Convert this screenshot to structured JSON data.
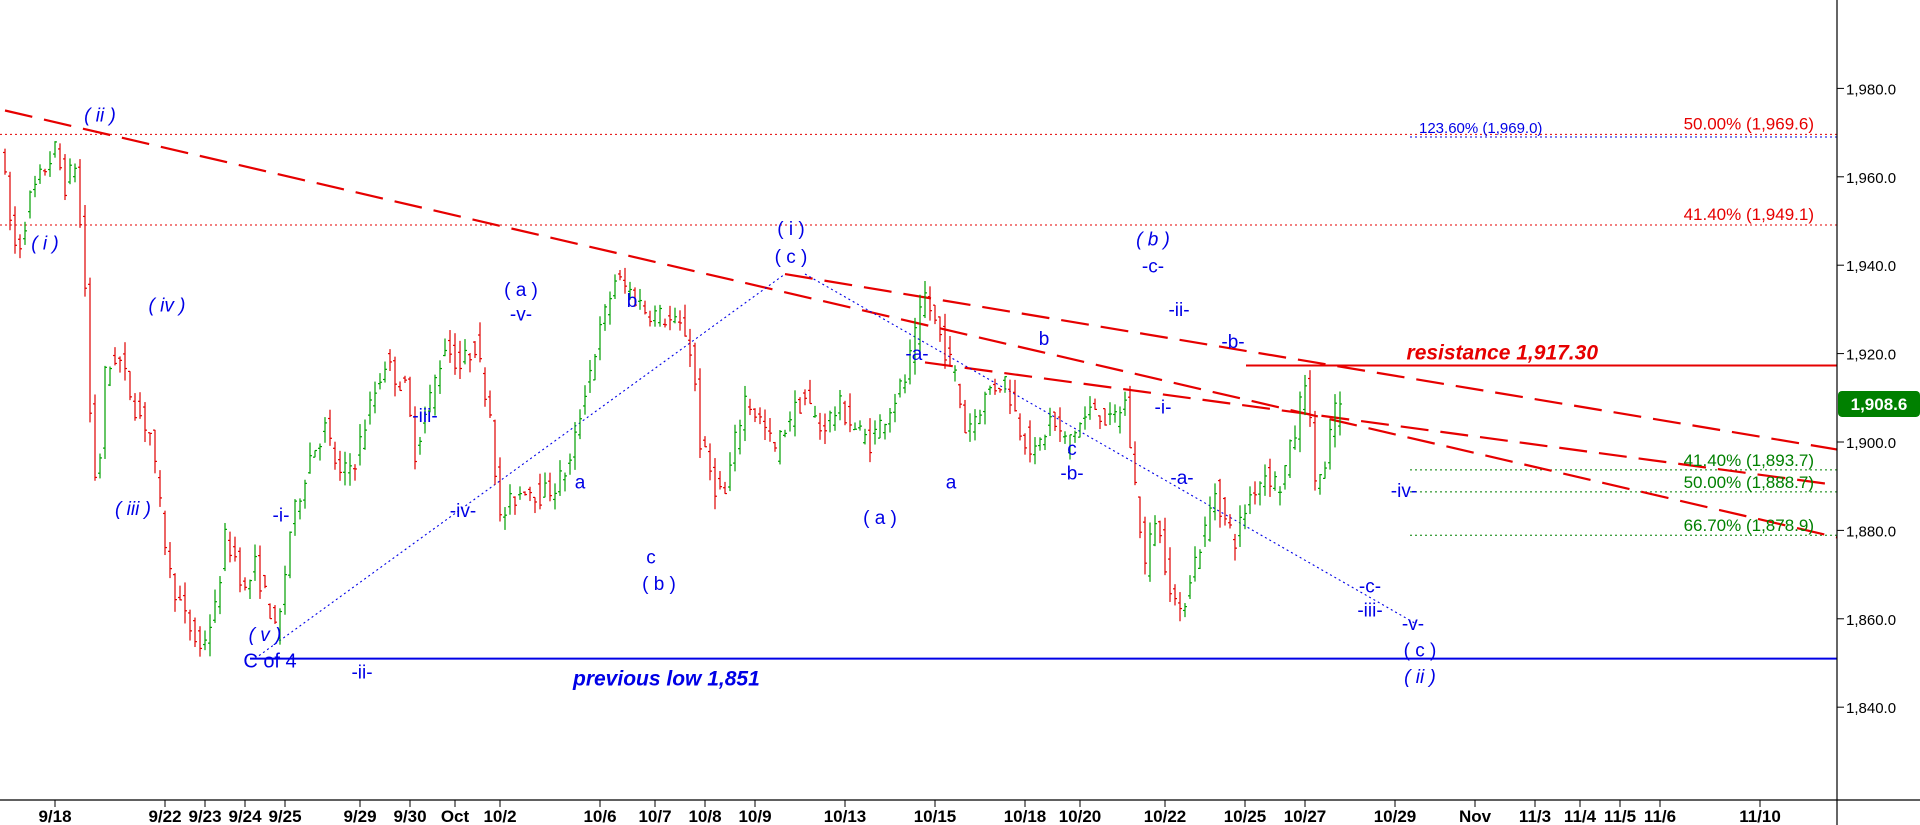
{
  "chart_data": {
    "type": "candlestick",
    "title": "",
    "xlabel": "",
    "ylabel": "",
    "ylim": [
      1819,
      2000
    ],
    "y_ticks": [
      1840,
      1860,
      1880,
      1900,
      1920,
      1940,
      1960,
      1980
    ],
    "y_tick_labels": [
      "1,840.0",
      "1,860.0",
      "1,880.0",
      "1,900.0",
      "1,920.0",
      "1,940.0",
      "1,960.0",
      "1,980.0"
    ],
    "x_ticks": [
      "9/18",
      "9/22",
      "9/23",
      "9/24",
      "9/25",
      "9/29",
      "9/30",
      "Oct",
      "10/2",
      "10/6",
      "10/7",
      "10/8",
      "10/9",
      "10/13",
      "10/15",
      "10/18",
      "10/20",
      "10/22",
      "10/25",
      "10/27",
      "10/29",
      "Nov",
      "11/3",
      "11/4",
      "11/5",
      "11/6",
      "11/10"
    ],
    "grid": false,
    "legend": "none",
    "colors": {
      "up": "#00a000",
      "down": "#e00000",
      "wave_label": "#0000e6",
      "fib_red": "#e60000",
      "fib_green": "#008000",
      "last_bg": "#008000"
    },
    "last_price": {
      "value": 1908.6,
      "label": "1,908.6"
    },
    "price_path": [
      {
        "x": 0.0,
        "p": 1968
      },
      {
        "x": 1.0,
        "p": 1950
      },
      {
        "x": 1.7,
        "p": 1942
      },
      {
        "x": 3.0,
        "p": 1955
      },
      {
        "x": 4.5,
        "p": 1962
      },
      {
        "x": 5.5,
        "p": 1966
      },
      {
        "x": 6.5,
        "p": 1958
      },
      {
        "x": 7.5,
        "p": 1963
      },
      {
        "x": 8.5,
        "p": 1935
      },
      {
        "x": 9.2,
        "p": 1895
      },
      {
        "x": 9.8,
        "p": 1890
      },
      {
        "x": 10.5,
        "p": 1915
      },
      {
        "x": 11.7,
        "p": 1920
      },
      {
        "x": 13.5,
        "p": 1908
      },
      {
        "x": 15.0,
        "p": 1902
      },
      {
        "x": 16.0,
        "p": 1885
      },
      {
        "x": 17.0,
        "p": 1870
      },
      {
        "x": 18.5,
        "p": 1860
      },
      {
        "x": 20.0,
        "p": 1853
      },
      {
        "x": 21.5,
        "p": 1862
      },
      {
        "x": 22.5,
        "p": 1878
      },
      {
        "x": 23.5,
        "p": 1874
      },
      {
        "x": 24.5,
        "p": 1866
      },
      {
        "x": 25.5,
        "p": 1872
      },
      {
        "x": 27.0,
        "p": 1862
      },
      {
        "x": 27.7,
        "p": 1855
      },
      {
        "x": 29.0,
        "p": 1880
      },
      {
        "x": 31.0,
        "p": 1897
      },
      {
        "x": 32.5,
        "p": 1903
      },
      {
        "x": 34.0,
        "p": 1892
      },
      {
        "x": 35.5,
        "p": 1896
      },
      {
        "x": 37.0,
        "p": 1908
      },
      {
        "x": 38.5,
        "p": 1918
      },
      {
        "x": 40.5,
        "p": 1912
      },
      {
        "x": 41.5,
        "p": 1898
      },
      {
        "x": 43.0,
        "p": 1910
      },
      {
        "x": 44.5,
        "p": 1922
      },
      {
        "x": 46.0,
        "p": 1917
      },
      {
        "x": 47.5,
        "p": 1922
      },
      {
        "x": 49.0,
        "p": 1907
      },
      {
        "x": 50.0,
        "p": 1882
      },
      {
        "x": 51.0,
        "p": 1886
      },
      {
        "x": 52.5,
        "p": 1890
      },
      {
        "x": 54.0,
        "p": 1888
      },
      {
        "x": 55.5,
        "p": 1890
      },
      {
        "x": 57.0,
        "p": 1895
      },
      {
        "x": 58.5,
        "p": 1912
      },
      {
        "x": 60.0,
        "p": 1925
      },
      {
        "x": 61.5,
        "p": 1937
      },
      {
        "x": 63.0,
        "p": 1934
      },
      {
        "x": 64.5,
        "p": 1930
      },
      {
        "x": 66.5,
        "p": 1928
      },
      {
        "x": 68.5,
        "p": 1925
      },
      {
        "x": 69.3,
        "p": 1918
      },
      {
        "x": 70.0,
        "p": 1900
      },
      {
        "x": 71.5,
        "p": 1890
      },
      {
        "x": 72.5,
        "p": 1888
      },
      {
        "x": 73.5,
        "p": 1900
      },
      {
        "x": 74.5,
        "p": 1910
      },
      {
        "x": 76.0,
        "p": 1905
      },
      {
        "x": 77.5,
        "p": 1898
      },
      {
        "x": 79.0,
        "p": 1906
      },
      {
        "x": 80.5,
        "p": 1910
      },
      {
        "x": 82.0,
        "p": 1903
      },
      {
        "x": 84.0,
        "p": 1908
      },
      {
        "x": 85.5,
        "p": 1903
      },
      {
        "x": 87.0,
        "p": 1900
      },
      {
        "x": 88.5,
        "p": 1906
      },
      {
        "x": 90.5,
        "p": 1914
      },
      {
        "x": 92.5,
        "p": 1933
      },
      {
        "x": 94.0,
        "p": 1924
      },
      {
        "x": 95.5,
        "p": 1915
      },
      {
        "x": 96.5,
        "p": 1903
      },
      {
        "x": 97.5,
        "p": 1906
      },
      {
        "x": 99.0,
        "p": 1912
      },
      {
        "x": 100.5,
        "p": 1914
      },
      {
        "x": 102.0,
        "p": 1903
      },
      {
        "x": 103.5,
        "p": 1897
      },
      {
        "x": 105.0,
        "p": 1905
      },
      {
        "x": 106.5,
        "p": 1900
      },
      {
        "x": 108.0,
        "p": 1904
      },
      {
        "x": 109.5,
        "p": 1908
      },
      {
        "x": 111.0,
        "p": 1904
      },
      {
        "x": 112.5,
        "p": 1909
      },
      {
        "x": 113.5,
        "p": 1890
      },
      {
        "x": 114.5,
        "p": 1872
      },
      {
        "x": 115.5,
        "p": 1883
      },
      {
        "x": 117.0,
        "p": 1868
      },
      {
        "x": 118.0,
        "p": 1860
      },
      {
        "x": 119.0,
        "p": 1870
      },
      {
        "x": 120.5,
        "p": 1880
      },
      {
        "x": 121.5,
        "p": 1889
      },
      {
        "x": 122.5,
        "p": 1882
      },
      {
        "x": 123.5,
        "p": 1878
      },
      {
        "x": 125.0,
        "p": 1888
      },
      {
        "x": 126.5,
        "p": 1893
      },
      {
        "x": 128.0,
        "p": 1890
      },
      {
        "x": 129.5,
        "p": 1902
      },
      {
        "x": 130.5,
        "p": 1915
      },
      {
        "x": 131.5,
        "p": 1892
      },
      {
        "x": 132.5,
        "p": 1893
      },
      {
        "x": 133.5,
        "p": 1908.6
      }
    ],
    "horizontal_lines": [
      {
        "name": "resistance",
        "y": 1917.3,
        "style": "solid",
        "color": "#e60000"
      },
      {
        "name": "previous-low",
        "y": 1851,
        "style": "solid",
        "color": "#0000e6"
      },
      {
        "name": "fib-50-red",
        "y": 1969.6,
        "style": "dotted",
        "color": "#e60000"
      },
      {
        "name": "fib-41-red",
        "y": 1949.1,
        "style": "dotted",
        "color": "#e60000"
      },
      {
        "name": "fib-123-blue",
        "y": 1969.0,
        "style": "dotted",
        "color": "#0000e6"
      },
      {
        "name": "fib-41-green",
        "y": 1893.7,
        "style": "dotted",
        "color": "#008000"
      },
      {
        "name": "fib-50-green",
        "y": 1888.7,
        "style": "dotted",
        "color": "#008000"
      },
      {
        "name": "fib-66-green",
        "y": 1878.9,
        "style": "dotted",
        "color": "#008000"
      }
    ],
    "trend_lines": [
      {
        "name": "downtrend-long",
        "from": [
          0,
          1975
        ],
        "to": [
          184,
          1878
        ],
        "color": "#e60000",
        "style": "dashed"
      },
      {
        "name": "downtrend-upper",
        "from": [
          78,
          1938
        ],
        "to": [
          184,
          1898
        ],
        "color": "#e60000",
        "style": "dashed"
      },
      {
        "name": "downtrend-lower",
        "from": [
          92,
          1918
        ],
        "to": [
          184,
          1890
        ],
        "color": "#e60000",
        "style": "dashed"
      },
      {
        "name": "channel-rise",
        "from": [
          25,
          1851
        ],
        "to": [
          78,
          1938
        ],
        "color": "#0000e6",
        "style": "dotted"
      },
      {
        "name": "channel-fall",
        "from": [
          80,
          1938
        ],
        "to": [
          141,
          1859
        ],
        "color": "#0000e6",
        "style": "dotted"
      }
    ],
    "annotations": {
      "resistance": "resistance 1,917.30",
      "previous_low": "previous low 1,851",
      "fib_red": [
        "50.00% (1,969.6)",
        "41.40% (1,949.1)"
      ],
      "fib_blue": [
        "123.60% (1,969.0)"
      ],
      "fib_green": [
        "41.40% (1,893.7)",
        "50.00% (1,888.7)",
        "66.70% (1,878.9)"
      ],
      "waves": [
        {
          "text": "( ii )",
          "x": 9.5,
          "y": 1972.5,
          "italic": true
        },
        {
          "text": "( i )",
          "x": 4.0,
          "y": 1943.5,
          "italic": true
        },
        {
          "text": "( iv )",
          "x": 16.2,
          "y": 1929.5,
          "italic": true
        },
        {
          "text": "( iii )",
          "x": 12.8,
          "y": 1883.5,
          "italic": true
        },
        {
          "text": "( v )",
          "x": 26.0,
          "y": 1855.0,
          "italic": true
        },
        {
          "text": "C of 4",
          "x": 26.5,
          "y": 1849.0,
          "italic": false
        },
        {
          "text": "-i-",
          "x": 27.6,
          "y": 1882.0,
          "italic": false
        },
        {
          "text": "-ii-",
          "x": 35.7,
          "y": 1846.5,
          "italic": false
        },
        {
          "text": "-iii-",
          "x": 42.0,
          "y": 1904.5,
          "italic": false
        },
        {
          "text": "-iv-",
          "x": 45.8,
          "y": 1883.0,
          "italic": false
        },
        {
          "text": "( a )",
          "x": 51.6,
          "y": 1933.0,
          "italic": false
        },
        {
          "text": "-v-",
          "x": 51.6,
          "y": 1927.5,
          "italic": false
        },
        {
          "text": "a",
          "x": 57.5,
          "y": 1889.5,
          "italic": false
        },
        {
          "text": "b",
          "x": 62.7,
          "y": 1930.5,
          "italic": false
        },
        {
          "text": "c",
          "x": 64.6,
          "y": 1872.5,
          "italic": false
        },
        {
          "text": "( b )",
          "x": 65.4,
          "y": 1866.5,
          "italic": false
        },
        {
          "text": "( i )",
          "x": 78.6,
          "y": 1946.8,
          "italic": false
        },
        {
          "text": "( c )",
          "x": 78.6,
          "y": 1940.5,
          "italic": false
        },
        {
          "text": "( a )",
          "x": 87.5,
          "y": 1881.5,
          "italic": false
        },
        {
          "text": "-a-",
          "x": 91.2,
          "y": 1918.5,
          "italic": false
        },
        {
          "text": "a",
          "x": 94.6,
          "y": 1889.5,
          "italic": false
        },
        {
          "text": "b",
          "x": 103.9,
          "y": 1922.0,
          "italic": false
        },
        {
          "text": "c",
          "x": 106.7,
          "y": 1897.0,
          "italic": false
        },
        {
          "text": "-b-",
          "x": 106.7,
          "y": 1891.5,
          "italic": false
        },
        {
          "text": "( b )",
          "x": 114.8,
          "y": 1944.5,
          "italic": true
        },
        {
          "text": "-c-",
          "x": 114.8,
          "y": 1938.3,
          "italic": false
        },
        {
          "text": "-ii-",
          "x": 117.4,
          "y": 1928.5,
          "italic": false
        },
        {
          "text": "-i-",
          "x": 115.8,
          "y": 1906.5,
          "italic": false
        },
        {
          "text": "-b-",
          "x": 122.8,
          "y": 1921.3,
          "italic": false
        },
        {
          "text": "-a-",
          "x": 117.7,
          "y": 1890.5,
          "italic": false
        },
        {
          "text": "-iv-",
          "x": 139.9,
          "y": 1887.5,
          "italic": false
        },
        {
          "text": "-c-",
          "x": 136.5,
          "y": 1866.0,
          "italic": false
        },
        {
          "text": "-iii-",
          "x": 136.5,
          "y": 1860.5,
          "italic": false
        },
        {
          "text": "-v-",
          "x": 140.8,
          "y": 1857.5,
          "italic": false
        },
        {
          "text": "( c )",
          "x": 141.5,
          "y": 1851.5,
          "italic": false
        },
        {
          "text": "( ii )",
          "x": 141.5,
          "y": 1845.5,
          "italic": true
        }
      ]
    }
  }
}
